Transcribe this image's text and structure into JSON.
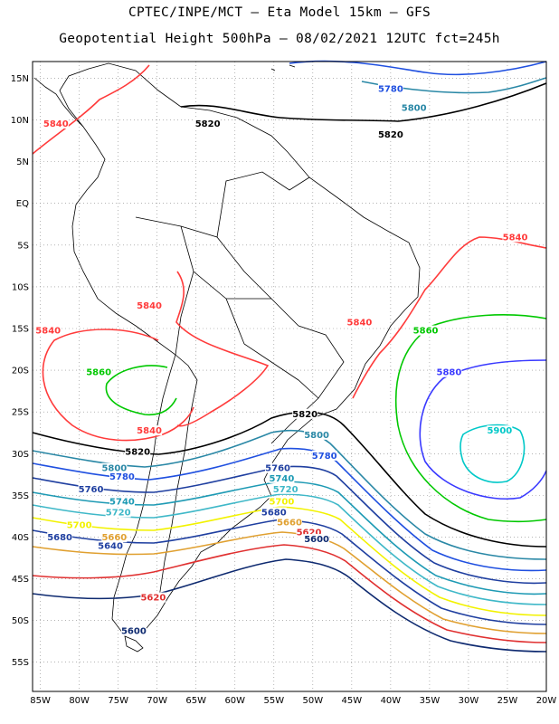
{
  "title": {
    "line1": "CPTEC/INPE/MCT –  Eta Model 15km – GFS",
    "line2": "Geopotential Height 500hPa – 08/02/2021 12UTC fct=245h"
  },
  "axes": {
    "lat_labels": [
      {
        "lat": 15,
        "text": "15N"
      },
      {
        "lat": 10,
        "text": "10N"
      },
      {
        "lat": 5,
        "text": "5N"
      },
      {
        "lat": 0,
        "text": "EQ"
      },
      {
        "lat": -5,
        "text": "5S"
      },
      {
        "lat": -10,
        "text": "10S"
      },
      {
        "lat": -15,
        "text": "15S"
      },
      {
        "lat": -20,
        "text": "20S"
      },
      {
        "lat": -25,
        "text": "25S"
      },
      {
        "lat": -30,
        "text": "30S"
      },
      {
        "lat": -35,
        "text": "35S"
      },
      {
        "lat": -40,
        "text": "40S"
      },
      {
        "lat": -45,
        "text": "45S"
      },
      {
        "lat": -50,
        "text": "50S"
      },
      {
        "lat": -55,
        "text": "55S"
      }
    ],
    "lon_labels": [
      {
        "lon": -85,
        "text": "85W"
      },
      {
        "lon": -80,
        "text": "80W"
      },
      {
        "lon": -75,
        "text": "75W"
      },
      {
        "lon": -70,
        "text": "70W"
      },
      {
        "lon": -65,
        "text": "65W"
      },
      {
        "lon": -60,
        "text": "60W"
      },
      {
        "lon": -55,
        "text": "55W"
      },
      {
        "lon": -50,
        "text": "50W"
      },
      {
        "lon": -45,
        "text": "45W"
      },
      {
        "lon": -40,
        "text": "40W"
      },
      {
        "lon": -35,
        "text": "35W"
      },
      {
        "lon": -30,
        "text": "30W"
      },
      {
        "lon": -25,
        "text": "25W"
      },
      {
        "lon": -20,
        "text": "20W"
      }
    ],
    "lon_range": [
      -86,
      -20
    ],
    "lat_range": [
      -58.5,
      17
    ],
    "grid": "dotted"
  },
  "colors": {
    "c5940": "#00c8c8",
    "c5900": "#3a3aff",
    "c5860": "#00c800",
    "c5840": "#ff3b3b",
    "c5820": "#000000",
    "c5800": "#2a88a6",
    "c5780": "#2050e0",
    "c5760": "#1f3fa0",
    "c5740": "#1e9ab4",
    "c5720": "#3fb8c8",
    "c5700": "#f2f200",
    "c5680": "#e0a030",
    "c5660": "#f08040",
    "c5620": "#e03030",
    "c5600": "#0e2a70",
    "land": "#000000"
  },
  "contour_labels": [
    {
      "id": "l5780n",
      "text": "5780",
      "lon": -40,
      "lat": 13.5,
      "color": "#2050e0"
    },
    {
      "id": "l5800n",
      "text": "5800",
      "lon": -37,
      "lat": 11.2,
      "color": "#2a88a6"
    },
    {
      "id": "l5820n",
      "text": "5820",
      "lon": -63.5,
      "lat": 9.3,
      "color": "#000000"
    },
    {
      "id": "l5820n2",
      "text": "5820",
      "lon": -40,
      "lat": 8.0,
      "color": "#000000"
    },
    {
      "id": "l5840nw",
      "text": "5840",
      "lon": -83,
      "lat": 9.3,
      "color": "#ff3b3b"
    },
    {
      "id": "l5840e",
      "text": "5840",
      "lon": -24,
      "lat": -4.3,
      "color": "#ff3b3b"
    },
    {
      "id": "l5840bz",
      "text": "5840",
      "lon": -71,
      "lat": -12.5,
      "color": "#ff3b3b"
    },
    {
      "id": "l5840w",
      "text": "5840",
      "lon": -84,
      "lat": -15.5,
      "color": "#ff3b3b"
    },
    {
      "id": "l5840c",
      "text": "5840",
      "lon": -44,
      "lat": -14.5,
      "color": "#ff3b3b"
    },
    {
      "id": "l5860e",
      "text": "5860",
      "lon": -35.5,
      "lat": -15.5,
      "color": "#00c800"
    },
    {
      "id": "l5860w",
      "text": "5860",
      "lon": -77.5,
      "lat": -20.5,
      "color": "#00c800"
    },
    {
      "id": "l5880",
      "text": "5880",
      "lon": -32.5,
      "lat": -20.5,
      "color": "#3a3aff"
    },
    {
      "id": "l5900",
      "text": "5900",
      "lon": -26,
      "lat": -27.5,
      "color": "#00c8c8"
    },
    {
      "id": "l5840s",
      "text": "5840",
      "lon": -71,
      "lat": -27.5,
      "color": "#ff3b3b"
    },
    {
      "id": "l5820c",
      "text": "5820",
      "lon": -51,
      "lat": -25.5,
      "color": "#000000"
    },
    {
      "id": "l5800c",
      "text": "5800",
      "lon": -49.5,
      "lat": -28,
      "color": "#2a88a6"
    },
    {
      "id": "l5820s",
      "text": "5820",
      "lon": -72.5,
      "lat": -30,
      "color": "#000000"
    },
    {
      "id": "l5780c",
      "text": "5780",
      "lon": -48.5,
      "lat": -30.5,
      "color": "#2050e0"
    },
    {
      "id": "l5800w",
      "text": "5800",
      "lon": -75.5,
      "lat": -32,
      "color": "#2a88a6"
    },
    {
      "id": "l5780w",
      "text": "5780",
      "lon": -74.5,
      "lat": -33,
      "color": "#2050e0"
    },
    {
      "id": "l5760c",
      "text": "5760",
      "lon": -54.5,
      "lat": -32,
      "color": "#1f3fa0"
    },
    {
      "id": "l5740c",
      "text": "5740",
      "lon": -54,
      "lat": -33.2,
      "color": "#1e9ab4"
    },
    {
      "id": "l5720c",
      "text": "5720",
      "lon": -53.5,
      "lat": -34.5,
      "color": "#3fb8c8"
    },
    {
      "id": "l5760w",
      "text": "5760",
      "lon": -78.5,
      "lat": -34.5,
      "color": "#1f3fa0"
    },
    {
      "id": "l5700c",
      "text": "5700",
      "lon": -54,
      "lat": -36,
      "color": "#f2f200"
    },
    {
      "id": "l5740w",
      "text": "5740",
      "lon": -74.5,
      "lat": -36,
      "color": "#1e9ab4"
    },
    {
      "id": "l5680c",
      "text": "5680",
      "lon": -55,
      "lat": -37.3,
      "color": "#1f3fa0"
    },
    {
      "id": "l5720w",
      "text": "5720",
      "lon": -75,
      "lat": -37.3,
      "color": "#3fb8c8"
    },
    {
      "id": "l5660c",
      "text": "5660",
      "lon": -53,
      "lat": -38.5,
      "color": "#e0a030"
    },
    {
      "id": "l5700w",
      "text": "5700",
      "lon": -80,
      "lat": -38.8,
      "color": "#f2f200"
    },
    {
      "id": "l5620c",
      "text": "5620",
      "lon": -50.5,
      "lat": -39.7,
      "color": "#e03030"
    },
    {
      "id": "l5600c",
      "text": "5600",
      "lon": -49.5,
      "lat": -40.5,
      "color": "#0e2a70"
    },
    {
      "id": "l5660w",
      "text": "5660",
      "lon": -75.5,
      "lat": -40.3,
      "color": "#e0a030"
    },
    {
      "id": "l5680w",
      "text": "5680",
      "lon": -82.5,
      "lat": -40.3,
      "color": "#1f3fa0"
    },
    {
      "id": "l5640w",
      "text": "5640",
      "lon": -76,
      "lat": -41.3,
      "color": "#1f3fa0"
    },
    {
      "id": "l5620w",
      "text": "5620",
      "lon": -70.5,
      "lat": -47.5,
      "color": "#e03030"
    },
    {
      "id": "l5600w",
      "text": "5600",
      "lon": -73,
      "lat": -51.5,
      "color": "#0e2a70"
    }
  ]
}
